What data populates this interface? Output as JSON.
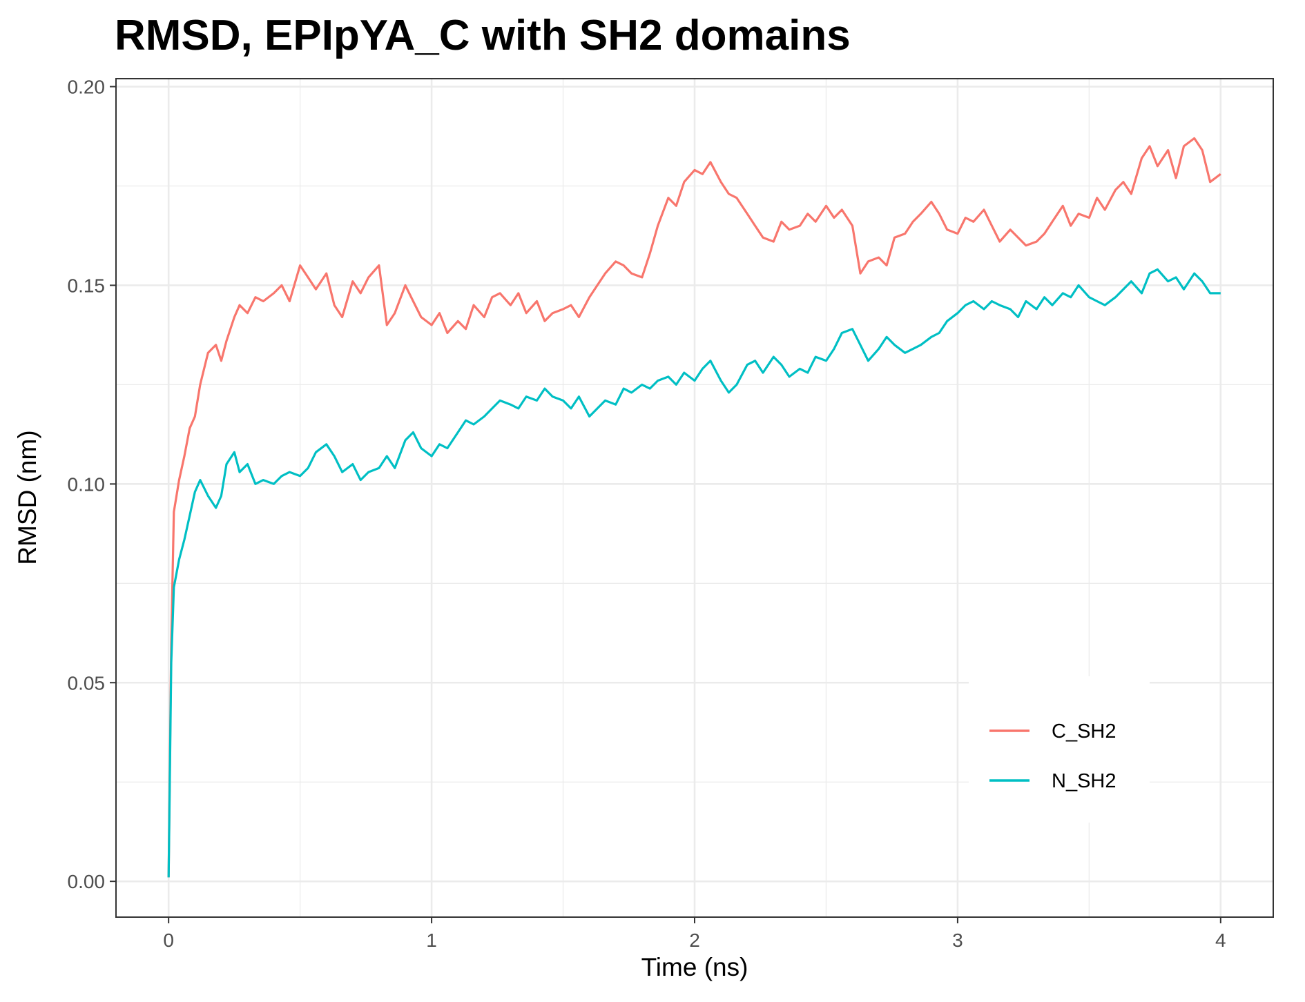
{
  "chart_data": {
    "type": "line",
    "title": "RMSD, EPIpYA_C with SH2 domains",
    "xlabel": "Time (ns)",
    "ylabel": "RMSD (nm)",
    "xlim": [
      -0.2,
      4.2
    ],
    "ylim": [
      -0.009,
      0.202
    ],
    "x_ticks": [
      0,
      1,
      2,
      3,
      4
    ],
    "x_tick_labels": [
      "0",
      "1",
      "2",
      "3",
      "4"
    ],
    "y_ticks": [
      0,
      0.05,
      0.1,
      0.15,
      0.2
    ],
    "y_tick_labels": [
      "0.00",
      "0.05",
      "0.10",
      "0.15",
      "0.20"
    ],
    "x_minor_ticks": [
      0.5,
      1.5,
      2.5,
      3.5
    ],
    "y_minor_ticks": [
      0.025,
      0.075,
      0.125,
      0.175
    ],
    "grid": true,
    "legend_position": "bottom-right",
    "series": [
      {
        "name": "C_SH2",
        "color": "#F8766D",
        "x": [
          0,
          0.01,
          0.02,
          0.04,
          0.06,
          0.08,
          0.1,
          0.12,
          0.15,
          0.18,
          0.2,
          0.22,
          0.25,
          0.27,
          0.3,
          0.33,
          0.36,
          0.4,
          0.43,
          0.46,
          0.5,
          0.53,
          0.56,
          0.6,
          0.63,
          0.66,
          0.7,
          0.73,
          0.76,
          0.8,
          0.83,
          0.86,
          0.9,
          0.93,
          0.96,
          1.0,
          1.03,
          1.06,
          1.1,
          1.13,
          1.16,
          1.2,
          1.23,
          1.26,
          1.3,
          1.33,
          1.36,
          1.4,
          1.43,
          1.46,
          1.5,
          1.53,
          1.56,
          1.6,
          1.63,
          1.66,
          1.7,
          1.73,
          1.76,
          1.8,
          1.83,
          1.86,
          1.9,
          1.93,
          1.96,
          2.0,
          2.03,
          2.06,
          2.1,
          2.13,
          2.16,
          2.2,
          2.23,
          2.26,
          2.3,
          2.33,
          2.36,
          2.4,
          2.43,
          2.46,
          2.5,
          2.53,
          2.56,
          2.6,
          2.63,
          2.66,
          2.7,
          2.73,
          2.76,
          2.8,
          2.83,
          2.86,
          2.9,
          2.93,
          2.96,
          3.0,
          3.03,
          3.06,
          3.1,
          3.13,
          3.16,
          3.2,
          3.23,
          3.26,
          3.3,
          3.33,
          3.36,
          3.4,
          3.43,
          3.46,
          3.5,
          3.53,
          3.56,
          3.6,
          3.63,
          3.66,
          3.7,
          3.73,
          3.76,
          3.8,
          3.83,
          3.86,
          3.9,
          3.93,
          3.96,
          4.0
        ],
        "values": [
          0.001,
          0.06,
          0.093,
          0.101,
          0.107,
          0.114,
          0.117,
          0.125,
          0.133,
          0.135,
          0.131,
          0.136,
          0.142,
          0.145,
          0.143,
          0.147,
          0.146,
          0.148,
          0.15,
          0.146,
          0.155,
          0.152,
          0.149,
          0.153,
          0.145,
          0.142,
          0.151,
          0.148,
          0.152,
          0.155,
          0.14,
          0.143,
          0.15,
          0.146,
          0.142,
          0.14,
          0.143,
          0.138,
          0.141,
          0.139,
          0.145,
          0.142,
          0.147,
          0.148,
          0.145,
          0.148,
          0.143,
          0.146,
          0.141,
          0.143,
          0.144,
          0.145,
          0.142,
          0.147,
          0.15,
          0.153,
          0.156,
          0.155,
          0.153,
          0.152,
          0.158,
          0.165,
          0.172,
          0.17,
          0.176,
          0.179,
          0.178,
          0.181,
          0.176,
          0.173,
          0.172,
          0.168,
          0.165,
          0.162,
          0.161,
          0.166,
          0.164,
          0.165,
          0.168,
          0.166,
          0.17,
          0.167,
          0.169,
          0.165,
          0.153,
          0.156,
          0.157,
          0.155,
          0.162,
          0.163,
          0.166,
          0.168,
          0.171,
          0.168,
          0.164,
          0.163,
          0.167,
          0.166,
          0.169,
          0.165,
          0.161,
          0.164,
          0.162,
          0.16,
          0.161,
          0.163,
          0.166,
          0.17,
          0.165,
          0.168,
          0.167,
          0.172,
          0.169,
          0.174,
          0.176,
          0.173,
          0.182,
          0.185,
          0.18,
          0.184,
          0.177,
          0.185,
          0.187,
          0.184,
          0.176,
          0.178
        ]
      },
      {
        "name": "N_SH2",
        "color": "#00BFC4",
        "x": [
          0,
          0.01,
          0.02,
          0.04,
          0.06,
          0.08,
          0.1,
          0.12,
          0.15,
          0.18,
          0.2,
          0.22,
          0.25,
          0.27,
          0.3,
          0.33,
          0.36,
          0.4,
          0.43,
          0.46,
          0.5,
          0.53,
          0.56,
          0.6,
          0.63,
          0.66,
          0.7,
          0.73,
          0.76,
          0.8,
          0.83,
          0.86,
          0.9,
          0.93,
          0.96,
          1.0,
          1.03,
          1.06,
          1.1,
          1.13,
          1.16,
          1.2,
          1.23,
          1.26,
          1.3,
          1.33,
          1.36,
          1.4,
          1.43,
          1.46,
          1.5,
          1.53,
          1.56,
          1.6,
          1.63,
          1.66,
          1.7,
          1.73,
          1.76,
          1.8,
          1.83,
          1.86,
          1.9,
          1.93,
          1.96,
          2.0,
          2.03,
          2.06,
          2.1,
          2.13,
          2.16,
          2.2,
          2.23,
          2.26,
          2.3,
          2.33,
          2.36,
          2.4,
          2.43,
          2.46,
          2.5,
          2.53,
          2.56,
          2.6,
          2.63,
          2.66,
          2.7,
          2.73,
          2.76,
          2.8,
          2.83,
          2.86,
          2.9,
          2.93,
          2.96,
          3.0,
          3.03,
          3.06,
          3.1,
          3.13,
          3.16,
          3.2,
          3.23,
          3.26,
          3.3,
          3.33,
          3.36,
          3.4,
          3.43,
          3.46,
          3.5,
          3.53,
          3.56,
          3.6,
          3.63,
          3.66,
          3.7,
          3.73,
          3.76,
          3.8,
          3.83,
          3.86,
          3.9,
          3.93,
          3.96,
          4.0
        ],
        "values": [
          0.001,
          0.055,
          0.074,
          0.081,
          0.086,
          0.092,
          0.098,
          0.101,
          0.097,
          0.094,
          0.097,
          0.105,
          0.108,
          0.103,
          0.105,
          0.1,
          0.101,
          0.1,
          0.102,
          0.103,
          0.102,
          0.104,
          0.108,
          0.11,
          0.107,
          0.103,
          0.105,
          0.101,
          0.103,
          0.104,
          0.107,
          0.104,
          0.111,
          0.113,
          0.109,
          0.107,
          0.11,
          0.109,
          0.113,
          0.116,
          0.115,
          0.117,
          0.119,
          0.121,
          0.12,
          0.119,
          0.122,
          0.121,
          0.124,
          0.122,
          0.121,
          0.119,
          0.122,
          0.117,
          0.119,
          0.121,
          0.12,
          0.124,
          0.123,
          0.125,
          0.124,
          0.126,
          0.127,
          0.125,
          0.128,
          0.126,
          0.129,
          0.131,
          0.126,
          0.123,
          0.125,
          0.13,
          0.131,
          0.128,
          0.132,
          0.13,
          0.127,
          0.129,
          0.128,
          0.132,
          0.131,
          0.134,
          0.138,
          0.139,
          0.135,
          0.131,
          0.134,
          0.137,
          0.135,
          0.133,
          0.134,
          0.135,
          0.137,
          0.138,
          0.141,
          0.143,
          0.145,
          0.146,
          0.144,
          0.146,
          0.145,
          0.144,
          0.142,
          0.146,
          0.144,
          0.147,
          0.145,
          0.148,
          0.147,
          0.15,
          0.147,
          0.146,
          0.145,
          0.147,
          0.149,
          0.151,
          0.148,
          0.153,
          0.154,
          0.151,
          0.152,
          0.149,
          0.153,
          0.151,
          0.148,
          0.148
        ]
      }
    ]
  }
}
